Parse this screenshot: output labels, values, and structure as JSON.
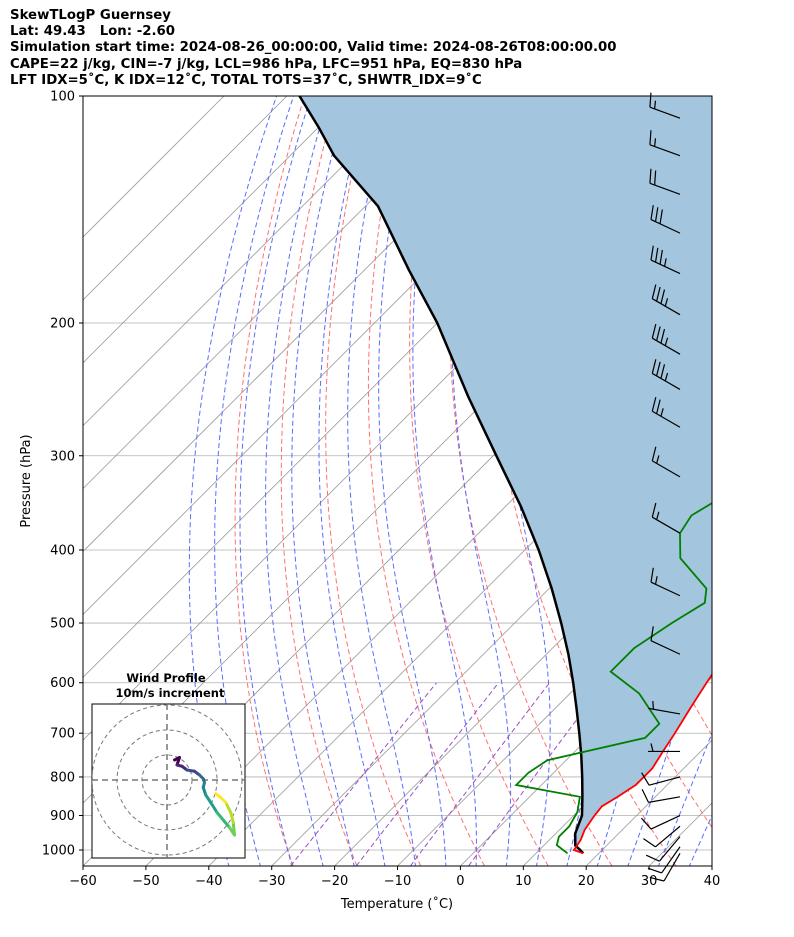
{
  "header": {
    "line1": "SkewTLogP Guernsey",
    "line2": "Lat: 49.43   Lon: -2.60",
    "line3": "Simulation start time: 2024-08-26_00:00:00, Valid time: 2024-08-26T08:00:00.00",
    "line4": "CAPE=22 j/kg, CIN=-7 j/kg, LCL=986 hPa, LFC=951 hPa, EQ=830 hPa",
    "line5": "LFT IDX=5˚C, K IDX=12˚C, TOTAL TOTS=37˚C, SHWTR_IDX=9˚C"
  },
  "chart_data": {
    "type": "line",
    "subtype": "skew-t log-p",
    "xlabel": "Temperature (˚C)",
    "ylabel": "Pressure (hPa)",
    "xlim": [
      -60,
      40
    ],
    "ylim": [
      1050,
      100
    ],
    "yscale": "log",
    "xticks": [
      -60,
      -50,
      -40,
      -30,
      -20,
      -10,
      0,
      10,
      20,
      30,
      40
    ],
    "yticks": [
      100,
      200,
      300,
      400,
      500,
      600,
      700,
      800,
      900,
      1000
    ],
    "colors": {
      "temperature": "#ff0000",
      "dewpoint": "#008000",
      "parcel": "#000000",
      "cape_fill": "#a3c6de",
      "dry_adiabat": "#ff7070",
      "moist_adiabat": "#5a6cff",
      "mixing_ratio": "#9a4fc9",
      "isotherm": "#999999",
      "grid": "#b0b0b0"
    },
    "series": [
      {
        "key": "temperature",
        "points": [
          [
            17.5,
            1010
          ],
          [
            15.5,
            1000
          ],
          [
            15,
            970
          ],
          [
            14,
            940
          ],
          [
            13.3,
            900
          ],
          [
            13,
            875
          ],
          [
            14,
            850
          ],
          [
            15,
            820
          ],
          [
            15,
            780
          ],
          [
            14,
            740
          ],
          [
            13,
            700
          ],
          [
            11.5,
            650
          ],
          [
            10,
            600
          ],
          [
            8.5,
            550
          ],
          [
            6,
            500
          ],
          [
            3,
            460
          ],
          [
            0,
            430
          ],
          [
            -4,
            400
          ],
          [
            -9,
            350
          ],
          [
            -12.5,
            310
          ],
          [
            -16,
            280
          ],
          [
            -19,
            260
          ],
          [
            -21,
            245
          ],
          [
            -23,
            230
          ],
          [
            -27,
            215
          ],
          [
            -31,
            205
          ],
          [
            -36,
            195
          ],
          [
            -43,
            185
          ],
          [
            -50,
            172
          ],
          [
            -56,
            155
          ],
          [
            -62,
            140
          ],
          [
            -66,
            126
          ],
          [
            -71,
            112
          ],
          [
            -75,
            100
          ]
        ]
      },
      {
        "key": "dewpoint",
        "points": [
          [
            15,
            1010
          ],
          [
            12,
            985
          ],
          [
            11,
            960
          ],
          [
            11,
            930
          ],
          [
            10,
            890
          ],
          [
            8,
            850
          ],
          [
            -4,
            820
          ],
          [
            -4,
            790
          ],
          [
            -3,
            760
          ],
          [
            9,
            710
          ],
          [
            9,
            680
          ],
          [
            1,
            620
          ],
          [
            -7,
            580
          ],
          [
            -7,
            540
          ],
          [
            -5,
            500
          ],
          [
            -3,
            470
          ],
          [
            -5,
            450
          ],
          [
            -14,
            410
          ],
          [
            -18,
            380
          ],
          [
            -19,
            360
          ],
          [
            -17,
            340
          ],
          [
            -13,
            320
          ],
          [
            -11.5,
            300
          ],
          [
            -13,
            280
          ],
          [
            -14,
            245
          ],
          [
            -15,
            215
          ],
          [
            -16,
            200
          ],
          [
            -15,
            185
          ],
          [
            -14,
            172
          ],
          [
            -15,
            162
          ],
          [
            -20,
            150
          ],
          [
            -24,
            142
          ],
          [
            -17,
            125
          ],
          [
            -11,
            112
          ],
          [
            -5,
            100
          ]
        ]
      },
      {
        "key": "parcel",
        "points": [
          [
            17.5,
            1010
          ],
          [
            16.5,
            1000
          ],
          [
            15,
            986
          ],
          [
            13.1,
            951
          ],
          [
            11.3,
            900
          ],
          [
            8.4,
            850
          ],
          [
            5.2,
            800
          ],
          [
            1.7,
            750
          ],
          [
            -2.2,
            700
          ],
          [
            -6.5,
            650
          ],
          [
            -11.2,
            600
          ],
          [
            -16.5,
            550
          ],
          [
            -22.6,
            500
          ],
          [
            -29.6,
            450
          ],
          [
            -37.8,
            400
          ],
          [
            -47.6,
            350
          ],
          [
            -59.5,
            300
          ],
          [
            -73.5,
            250
          ],
          [
            -90,
            200
          ],
          [
            -103,
            170
          ],
          [
            -118,
            140
          ],
          [
            -133,
            120
          ],
          [
            -140,
            110
          ],
          [
            -148,
            100
          ]
        ]
      }
    ],
    "wind_barbs": [
      {
        "p": 1010,
        "speed_kt": 10,
        "dir_deg": 210
      },
      {
        "p": 990,
        "speed_kt": 12,
        "dir_deg": 215
      },
      {
        "p": 960,
        "speed_kt": 12,
        "dir_deg": 220
      },
      {
        "p": 930,
        "speed_kt": 12,
        "dir_deg": 230
      },
      {
        "p": 900,
        "speed_kt": 10,
        "dir_deg": 245
      },
      {
        "p": 850,
        "speed_kt": 8,
        "dir_deg": 260
      },
      {
        "p": 800,
        "speed_kt": 8,
        "dir_deg": 255
      },
      {
        "p": 740,
        "speed_kt": 5,
        "dir_deg": 270
      },
      {
        "p": 660,
        "speed_kt": 5,
        "dir_deg": 280
      },
      {
        "p": 550,
        "speed_kt": 12,
        "dir_deg": 295
      },
      {
        "p": 460,
        "speed_kt": 15,
        "dir_deg": 295
      },
      {
        "p": 380,
        "speed_kt": 15,
        "dir_deg": 300
      },
      {
        "p": 320,
        "speed_kt": 15,
        "dir_deg": 300
      },
      {
        "p": 275,
        "speed_kt": 25,
        "dir_deg": 300
      },
      {
        "p": 245,
        "speed_kt": 35,
        "dir_deg": 300
      },
      {
        "p": 220,
        "speed_kt": 35,
        "dir_deg": 300
      },
      {
        "p": 195,
        "speed_kt": 35,
        "dir_deg": 300
      },
      {
        "p": 172,
        "speed_kt": 35,
        "dir_deg": 295
      },
      {
        "p": 152,
        "speed_kt": 30,
        "dir_deg": 295
      },
      {
        "p": 135,
        "speed_kt": 20,
        "dir_deg": 290
      },
      {
        "p": 120,
        "speed_kt": 15,
        "dir_deg": 290
      },
      {
        "p": 107,
        "speed_kt": 15,
        "dir_deg": 290
      }
    ],
    "hodograph": {
      "title_line1": "Wind Profile",
      "title_line2": "10m/s increment",
      "rings": [
        1,
        2,
        3
      ],
      "points": [
        [
          0.3,
          0.8
        ],
        [
          0.5,
          0.9
        ],
        [
          0.4,
          0.6
        ],
        [
          0.6,
          0.55
        ],
        [
          0.8,
          0.4
        ],
        [
          1.1,
          0.35
        ],
        [
          1.3,
          0.2
        ],
        [
          1.45,
          0.05
        ],
        [
          1.5,
          -0.1
        ],
        [
          1.45,
          -0.3
        ],
        [
          1.55,
          -0.6
        ],
        [
          1.75,
          -0.9
        ],
        [
          2.0,
          -1.3
        ],
        [
          2.25,
          -1.6
        ],
        [
          2.5,
          -1.9
        ],
        [
          2.7,
          -2.2
        ],
        [
          2.65,
          -1.7
        ],
        [
          2.55,
          -1.3
        ],
        [
          2.35,
          -0.9
        ],
        [
          2.15,
          -0.7
        ],
        [
          1.95,
          -0.55
        ]
      ]
    }
  }
}
